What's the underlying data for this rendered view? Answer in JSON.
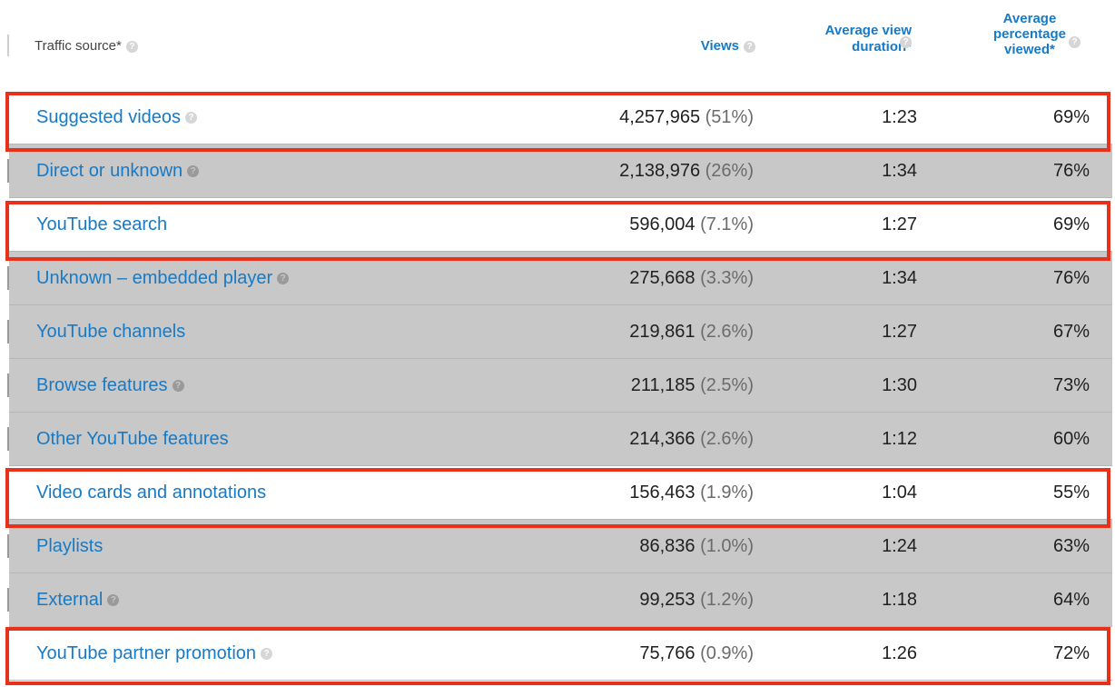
{
  "columns": {
    "source": "Traffic source*",
    "views": "Views",
    "duration_line1": "Average view",
    "duration_line2": "duration*",
    "percent_line1": "Average",
    "percent_line2": "percentage",
    "percent_line3": "viewed*"
  },
  "help_glyph": "?",
  "rows": [
    {
      "source": "Suggested videos",
      "views": "4,257,965",
      "share": "(51%)",
      "duration": "1:23",
      "percent": "69%"
    },
    {
      "source": "Direct or unknown",
      "views": "2,138,976",
      "share": "(26%)",
      "duration": "1:34",
      "percent": "76%"
    },
    {
      "source": "YouTube search",
      "views": "596,004",
      "share": "(7.1%)",
      "duration": "1:27",
      "percent": "69%"
    },
    {
      "source": "Unknown – embedded player",
      "views": "275,668",
      "share": "(3.3%)",
      "duration": "1:34",
      "percent": "76%"
    },
    {
      "source": "YouTube channels",
      "views": "219,861",
      "share": "(2.6%)",
      "duration": "1:27",
      "percent": "67%"
    },
    {
      "source": "Browse features",
      "views": "211,185",
      "share": "(2.5%)",
      "duration": "1:30",
      "percent": "73%"
    },
    {
      "source": "Other YouTube features",
      "views": "214,366",
      "share": "(2.6%)",
      "duration": "1:12",
      "percent": "60%"
    },
    {
      "source": "Video cards and annotations",
      "views": "156,463",
      "share": "(1.9%)",
      "duration": "1:04",
      "percent": "55%"
    },
    {
      "source": "Playlists",
      "views": "86,836",
      "share": "(1.0%)",
      "duration": "1:24",
      "percent": "63%"
    },
    {
      "source": "External",
      "views": "99,253",
      "share": "(1.2%)",
      "duration": "1:18",
      "percent": "64%"
    },
    {
      "source": "YouTube partner promotion",
      "views": "75,766",
      "share": "(0.9%)",
      "duration": "1:26",
      "percent": "72%"
    }
  ],
  "colors": {
    "link": "#167ac6",
    "highlight_border": "#e8311a",
    "row_shaded": "#c8c8c8"
  }
}
